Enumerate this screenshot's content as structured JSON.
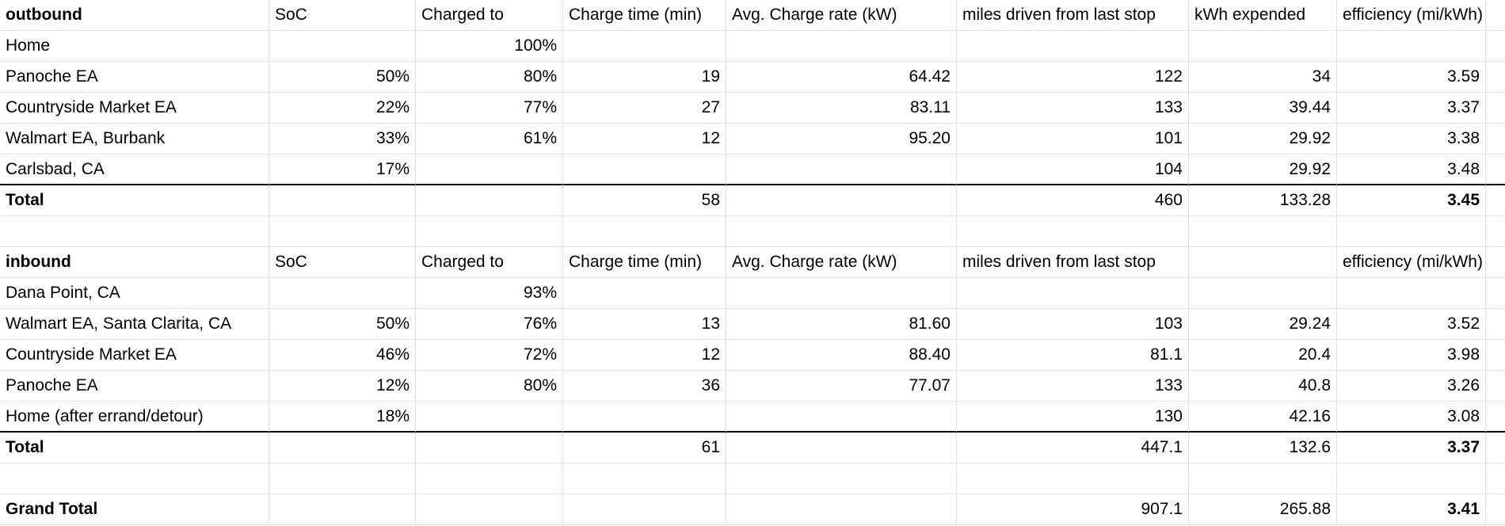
{
  "outbound": {
    "header": [
      "outbound",
      "SoC",
      "Charged to",
      "Charge time (min)",
      "Avg. Charge rate (kW)",
      "miles driven from last stop",
      "kWh expended",
      "efficiency (mi/kWh)"
    ],
    "rows": [
      [
        "Home",
        null,
        "100%",
        null,
        null,
        null,
        null,
        null
      ],
      [
        "Panoche EA",
        "50%",
        "80%",
        "19",
        "64.42",
        "122",
        "34",
        "3.59"
      ],
      [
        "Countryside Market EA",
        "22%",
        "77%",
        "27",
        "83.11",
        "133",
        "39.44",
        "3.37"
      ],
      [
        "Walmart EA, Burbank",
        "33%",
        "61%",
        "12",
        "95.20",
        "101",
        "29.92",
        "3.38"
      ],
      [
        "Carlsbad, CA",
        "17%",
        null,
        null,
        null,
        "104",
        "29.92",
        "3.48"
      ]
    ],
    "total": [
      "Total",
      null,
      null,
      "58",
      null,
      "460",
      "133.28",
      "3.45"
    ]
  },
  "inbound": {
    "header": [
      "inbound",
      "SoC",
      "Charged to",
      "Charge time (min)",
      "Avg. Charge rate (kW)",
      "miles driven from last stop",
      null,
      "efficiency (mi/kWh)"
    ],
    "rows": [
      [
        "Dana Point, CA",
        null,
        "93%",
        null,
        null,
        null,
        null,
        null
      ],
      [
        "Walmart EA, Santa Clarita, CA",
        "50%",
        "76%",
        "13",
        "81.60",
        "103",
        "29.24",
        "3.52"
      ],
      [
        "Countryside Market EA",
        "46%",
        "72%",
        "12",
        "88.40",
        "81.1",
        "20.4",
        "3.98"
      ],
      [
        "Panoche EA",
        "12%",
        "80%",
        "36",
        "77.07",
        "133",
        "40.8",
        "3.26"
      ],
      [
        "Home (after errand/detour)",
        "18%",
        null,
        null,
        null,
        "130",
        "42.16",
        "3.08"
      ]
    ],
    "total": [
      "Total",
      null,
      null,
      "61",
      null,
      "447.1",
      "132.6",
      "3.37"
    ]
  },
  "grand_total": [
    "Grand Total",
    null,
    null,
    null,
    null,
    "907.1",
    "265.88",
    "3.41"
  ]
}
